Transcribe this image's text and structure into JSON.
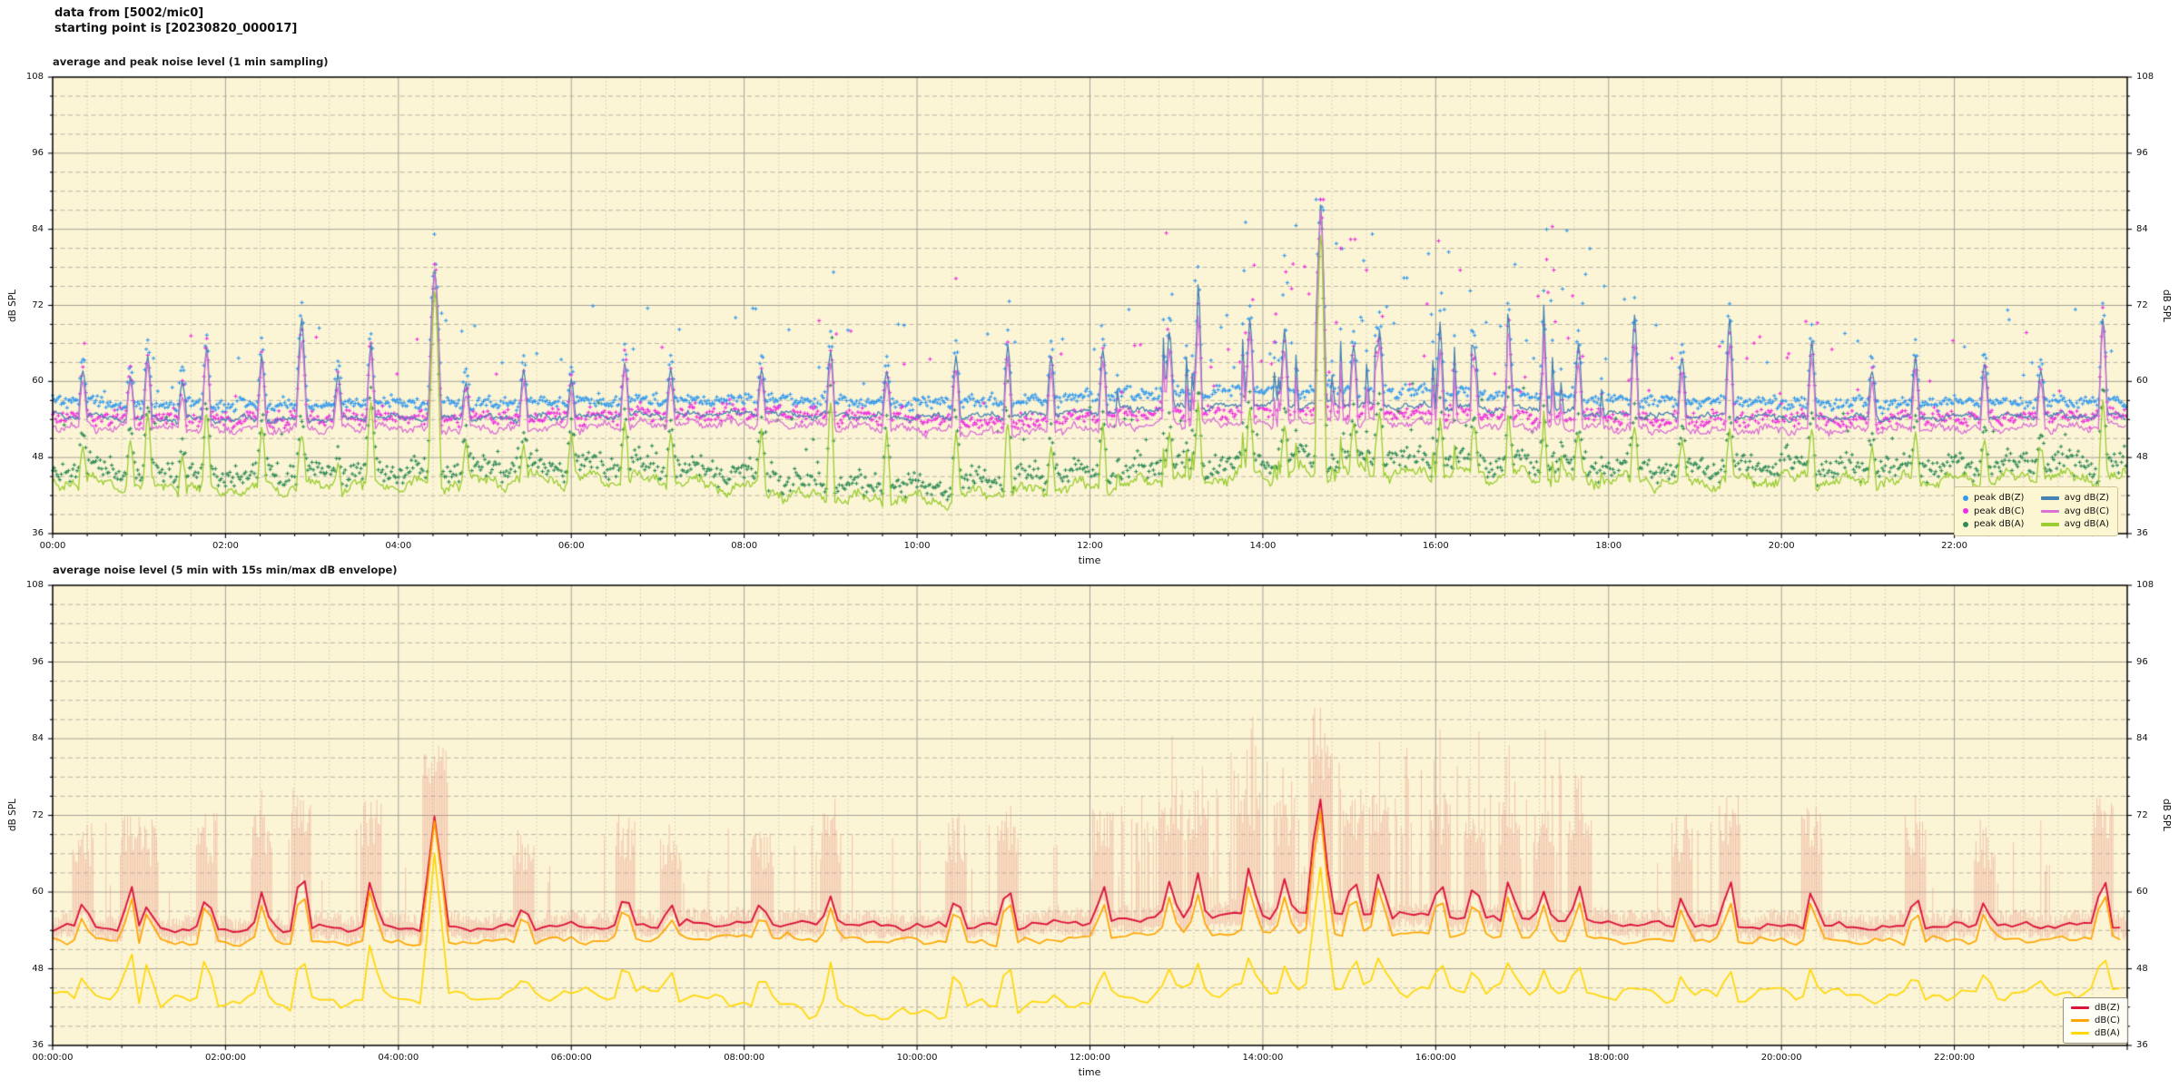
{
  "header": {
    "line1": "data from [5002/mic0]",
    "line2": "starting point is [20230820_000017]"
  },
  "figure": {
    "bg": "#ffffff",
    "plot_bg": "#fcf5d5",
    "grid_major": "#a5a298",
    "grid_minor_h": "#b8b3a6",
    "grid_minor_v": "#c9c4b2",
    "spine": "#000000",
    "tick_color": "#000000"
  },
  "chart_data": [
    {
      "type": "line+scatter",
      "title": "average and peak noise level (1 min sampling)",
      "xlabel": "time",
      "ylabel": "dB SPL",
      "ylabel_right": "dB SPL",
      "ylim": [
        36,
        108
      ],
      "y_major_step": 12,
      "y_minor_step": 3,
      "hours": 24,
      "x_major_step_h": 2,
      "x_minor_step_h": 0.4,
      "x_tick_labels": [
        "00:00",
        "02:00",
        "04:00",
        "06:00",
        "08:00",
        "10:00",
        "12:00",
        "14:00",
        "16:00",
        "18:00",
        "20:00",
        "22:00"
      ],
      "y_tick_labels": [
        "36",
        "48",
        "60",
        "72",
        "84",
        "96",
        "108"
      ],
      "sampling_minutes": 1,
      "seed": 7,
      "grid": true,
      "legend_position": "lower right",
      "busy": {
        "from": 12.2,
        "to": 18.0,
        "prob": 0.07,
        "mag": [
          2,
          11
        ]
      },
      "events": [
        [
          0.35,
          62,
          60.5,
          50,
          0.1
        ],
        [
          0.9,
          61,
          60,
          51,
          0.1
        ],
        [
          1.1,
          64,
          63,
          55,
          0.1
        ],
        [
          1.5,
          60,
          58,
          48,
          0.1
        ],
        [
          1.78,
          65.5,
          65,
          55.5,
          0.1
        ],
        [
          2.42,
          64,
          63,
          53,
          0.1
        ],
        [
          2.88,
          70,
          66.5,
          52,
          0.12
        ],
        [
          3.3,
          61,
          59,
          47,
          0.1
        ],
        [
          3.68,
          66,
          65,
          57,
          0.1
        ],
        [
          4.42,
          78,
          77,
          74.5,
          0.15
        ],
        [
          4.78,
          60,
          58,
          50,
          0.1
        ],
        [
          5.45,
          62,
          60,
          50,
          0.1
        ],
        [
          6.0,
          60,
          58.5,
          52,
          0.1
        ],
        [
          6.62,
          63,
          62,
          54,
          0.1
        ],
        [
          7.15,
          62,
          60,
          52,
          0.1
        ],
        [
          8.2,
          62,
          60.5,
          52,
          0.1
        ],
        [
          9.0,
          65,
          63,
          57,
          0.1
        ],
        [
          9.65,
          62,
          60,
          52,
          0.1
        ],
        [
          10.45,
          64,
          62,
          52,
          0.1
        ],
        [
          11.05,
          66,
          64,
          54,
          0.1
        ],
        [
          11.55,
          64,
          62,
          50,
          0.1
        ],
        [
          12.15,
          65,
          63,
          53,
          0.1
        ],
        [
          12.92,
          68,
          65,
          52,
          0.1
        ],
        [
          13.25,
          70,
          66,
          54,
          0.1
        ],
        [
          13.85,
          70,
          68,
          55.5,
          0.1
        ],
        [
          14.25,
          68,
          65,
          53,
          0.1
        ],
        [
          14.67,
          88,
          87,
          84,
          0.13
        ],
        [
          15.05,
          66,
          64,
          54,
          0.1
        ],
        [
          15.35,
          68,
          66,
          55,
          0.1
        ],
        [
          16.05,
          67,
          63.5,
          53,
          0.1
        ],
        [
          16.45,
          65,
          62,
          52,
          0.1
        ],
        [
          16.85,
          66,
          64,
          53,
          0.1
        ],
        [
          17.25,
          64,
          61,
          51,
          0.1
        ],
        [
          17.65,
          66,
          63,
          52,
          0.1
        ],
        [
          18.3,
          70,
          66,
          53,
          0.1
        ],
        [
          18.85,
          64,
          61,
          51,
          0.1
        ],
        [
          19.4,
          70,
          65.5,
          52,
          0.1
        ],
        [
          20.35,
          66,
          64,
          53,
          0.1
        ],
        [
          21.05,
          62,
          60,
          50,
          0.1
        ],
        [
          21.55,
          64,
          62,
          52,
          0.1
        ],
        [
          22.35,
          63,
          61,
          51,
          0.1
        ],
        [
          23.0,
          62,
          60,
          50,
          0.1
        ],
        [
          23.72,
          70,
          69,
          57,
          0.1
        ]
      ],
      "series": [
        {
          "name": "peak dB(Z)",
          "kind": "scatter",
          "color": "#3399ee",
          "ref": "avg dB(Z)",
          "offset": 2.3,
          "spread": 1.0,
          "outlier_prob": 0.035,
          "outlier_mag": [
            2,
            16
          ],
          "busy_outlier_prob": 0.13,
          "busy_outlier_mag": [
            3,
            26
          ],
          "clamp": 88.7,
          "seed": 21
        },
        {
          "name": "peak dB(C)",
          "kind": "scatter",
          "color": "#ee2fe0",
          "ref": "avg dB(C)",
          "offset": 1.7,
          "spread": 1.2,
          "outlier_prob": 0.03,
          "outlier_mag": [
            2,
            15
          ],
          "busy_outlier_prob": 0.11,
          "busy_outlier_mag": [
            3,
            24
          ],
          "clamp": 88.7,
          "seed": 22
        },
        {
          "name": "peak dB(A)",
          "kind": "scatter",
          "color": "#2e8b57",
          "ref": "avg dB(A)",
          "offset": 2.2,
          "spread": 1.8,
          "outlier_prob": 0.03,
          "outlier_mag": [
            2,
            10
          ],
          "busy_outlier_prob": 0.06,
          "busy_outlier_mag": [
            2,
            12
          ],
          "clamp": 88.7,
          "seed": 23
        },
        {
          "name": "avg dB(Z)",
          "kind": "line",
          "color": "#4682b4",
          "width": 1.3,
          "event_idx": 1,
          "jitter": 0.5,
          "wander": [
            0.5,
            34,
            13
          ],
          "busy_scale": 1.0,
          "seed": 11,
          "base": [
            54.6,
            54.2,
            54.0,
            54.1,
            54.3,
            54.2,
            54.4,
            54.7,
            55.0,
            54.6,
            54.4,
            54.6,
            55.2,
            55.8,
            56.2,
            56.4,
            56.0,
            55.6,
            54.9,
            54.5,
            54.4,
            54.3,
            54.4,
            54.6,
            54.6
          ]
        },
        {
          "name": "avg dB(C)",
          "kind": "line",
          "color": "#da70d6",
          "width": 1.3,
          "event_idx": 2,
          "jitter": 0.65,
          "wander": [
            0.7,
            30,
            12
          ],
          "busy_scale": 0.85,
          "seed": 12,
          "base": [
            53.0,
            52.6,
            52.4,
            52.5,
            52.7,
            52.6,
            52.8,
            53.2,
            53.4,
            53.0,
            52.4,
            51.9,
            52.6,
            53.4,
            53.6,
            53.8,
            53.4,
            53.0,
            52.6,
            52.3,
            52.4,
            52.4,
            52.5,
            52.8,
            52.8
          ]
        },
        {
          "name": "avg dB(A)",
          "kind": "line",
          "color": "#9acd32",
          "width": 1.3,
          "event_idx": 3,
          "jitter": 0.95,
          "wander": [
            1.3,
            38,
            14
          ],
          "busy_scale": 0.5,
          "seed": 13,
          "base": [
            44.2,
            43.6,
            43.0,
            43.2,
            43.8,
            44.2,
            44.6,
            44.4,
            43.2,
            41.6,
            41.2,
            42.6,
            43.4,
            44.6,
            45.2,
            45.6,
            45.4,
            45.0,
            44.6,
            44.2,
            44.6,
            44.2,
            44.4,
            45.0,
            44.6
          ]
        }
      ],
      "legend": {
        "columns": 2,
        "entries": [
          {
            "label": "peak dB(Z)",
            "marker": "dot",
            "color": "#3399ee"
          },
          {
            "label": "peak dB(C)",
            "marker": "dot",
            "color": "#ee2fe0"
          },
          {
            "label": "peak dB(A)",
            "marker": "dot",
            "color": "#2e8b57"
          },
          {
            "label": "avg dB(Z)",
            "marker": "line",
            "color": "#4682b4"
          },
          {
            "label": "avg dB(C)",
            "marker": "line",
            "color": "#da70d6"
          },
          {
            "label": "avg dB(A)",
            "marker": "line",
            "color": "#9acd32"
          }
        ]
      }
    },
    {
      "type": "line+envelope",
      "title": "average noise level (5 min with 15s min/max dB envelope)",
      "xlabel": "time",
      "ylabel": "dB SPL",
      "ylabel_right": "dB SPL",
      "ylim": [
        36,
        108
      ],
      "y_major_step": 12,
      "y_minor_step": 3,
      "hours": 24,
      "x_major_step_h": 2,
      "x_minor_step_h": 0.4,
      "x_tick_labels": [
        "00:00:00",
        "02:00:00",
        "04:00:00",
        "06:00:00",
        "08:00:00",
        "10:00:00",
        "12:00:00",
        "14:00:00",
        "16:00:00",
        "18:00:00",
        "20:00:00",
        "22:00:00"
      ],
      "y_tick_labels": [
        "36",
        "48",
        "60",
        "72",
        "84",
        "96",
        "108"
      ],
      "sampling_minutes": 5,
      "seed": 8,
      "grid": true,
      "legend_position": "lower right",
      "busy": {
        "from": 12.2,
        "to": 18.0,
        "prob": 0.06,
        "mag": [
          1,
          5.5
        ]
      },
      "envelope": {
        "color": "rgba(233,148,134,0.5)",
        "ref": "dB(Z)",
        "down": [
          0.8,
          2.2
        ],
        "up_base": [
          0.5,
          2.4
        ],
        "spike_prob": 0.055,
        "spike_mag": [
          5,
          17
        ],
        "busy_from": 12.2,
        "busy_to": 17.8,
        "busy_prob": 0.32,
        "busy_mag": [
          6,
          26
        ],
        "event_boost": [
          5,
          8
        ],
        "clamp": 88.8,
        "seed": 31
      },
      "events": [
        [
          0.35,
          58,
          56,
          47,
          0.2
        ],
        [
          0.9,
          61,
          59.5,
          51,
          0.2
        ],
        [
          1.1,
          58,
          57,
          49,
          0.2
        ],
        [
          1.78,
          59.5,
          58.5,
          50,
          0.2
        ],
        [
          2.42,
          60,
          58,
          48,
          0.2
        ],
        [
          2.88,
          64,
          61,
          50,
          0.2
        ],
        [
          3.68,
          62,
          60.5,
          52,
          0.2
        ],
        [
          4.42,
          72,
          71,
          66,
          0.26
        ],
        [
          5.45,
          58,
          56.5,
          47,
          0.2
        ],
        [
          6.62,
          59.5,
          58,
          49,
          0.2
        ],
        [
          7.15,
          58,
          56,
          48,
          0.2
        ],
        [
          8.2,
          58,
          56.5,
          47,
          0.2
        ],
        [
          9.0,
          59.5,
          57.5,
          49,
          0.2
        ],
        [
          10.45,
          59.5,
          57.5,
          48,
          0.2
        ],
        [
          11.05,
          61,
          59,
          49,
          0.2
        ],
        [
          12.15,
          61,
          58.5,
          48,
          0.2
        ],
        [
          12.92,
          62,
          59,
          48,
          0.2
        ],
        [
          13.25,
          63,
          60,
          49,
          0.2
        ],
        [
          13.85,
          64,
          61.5,
          50,
          0.2
        ],
        [
          14.25,
          62,
          59,
          48,
          0.2
        ],
        [
          14.67,
          72,
          70.5,
          63,
          0.24
        ],
        [
          15.05,
          62,
          60,
          50,
          0.2
        ],
        [
          15.35,
          63,
          61,
          50,
          0.2
        ],
        [
          16.05,
          62,
          59.5,
          49,
          0.2
        ],
        [
          16.45,
          61,
          58.5,
          48,
          0.2
        ],
        [
          16.85,
          62,
          60,
          49,
          0.2
        ],
        [
          17.25,
          60,
          58,
          48,
          0.2
        ],
        [
          17.65,
          61,
          59,
          48,
          0.2
        ],
        [
          18.85,
          59.5,
          57.5,
          47,
          0.2
        ],
        [
          19.4,
          62,
          58.5,
          48,
          0.2
        ],
        [
          20.35,
          60.5,
          58.5,
          48,
          0.2
        ],
        [
          21.55,
          59.5,
          57.5,
          47,
          0.2
        ],
        [
          22.35,
          58.5,
          56.5,
          47,
          0.2
        ],
        [
          23.72,
          62.5,
          60.5,
          50,
          0.2
        ]
      ],
      "series": [
        {
          "name": "dB(Z)",
          "kind": "line",
          "color": "#dc143c",
          "width": 1.9,
          "event_idx": 1,
          "jitter": 0.4,
          "wander": [
            0.6,
            42,
            16
          ],
          "busy_scale": 1.0,
          "seed": 14,
          "base": [
            54.8,
            54.4,
            54.2,
            54.3,
            54.5,
            54.4,
            54.6,
            54.9,
            55.2,
            54.8,
            54.6,
            54.8,
            55.4,
            56.0,
            56.4,
            56.6,
            56.2,
            55.8,
            55.1,
            54.7,
            54.6,
            54.5,
            54.6,
            54.8,
            54.8
          ]
        },
        {
          "name": "dB(C)",
          "kind": "line",
          "color": "#ffa500",
          "width": 1.7,
          "event_idx": 2,
          "jitter": 0.45,
          "wander": [
            0.6,
            40,
            15
          ],
          "busy_scale": 0.9,
          "seed": 15,
          "base": [
            52.6,
            52.2,
            52.0,
            52.1,
            52.3,
            52.2,
            52.4,
            52.8,
            53.0,
            52.6,
            52.4,
            52.2,
            52.8,
            53.4,
            53.6,
            53.8,
            53.4,
            53.0,
            52.5,
            52.2,
            52.3,
            52.3,
            52.4,
            52.7,
            52.7
          ]
        },
        {
          "name": "dB(A)",
          "kind": "line",
          "color": "#ffd705",
          "width": 1.7,
          "event_idx": 3,
          "jitter": 0.55,
          "wander": [
            1.2,
            46,
            18
          ],
          "busy_scale": 0.5,
          "seed": 16,
          "base": [
            43.8,
            43.2,
            42.6,
            42.8,
            43.4,
            43.8,
            44.2,
            44.0,
            42.8,
            41.2,
            40.8,
            42.2,
            43.0,
            44.2,
            44.8,
            45.2,
            45.0,
            44.6,
            44.2,
            43.8,
            44.2,
            43.8,
            44.0,
            44.6,
            44.2
          ]
        }
      ],
      "legend": {
        "columns": 1,
        "entries": [
          {
            "label": "dB(Z)",
            "marker": "line",
            "color": "#dc143c"
          },
          {
            "label": "dB(C)",
            "marker": "line",
            "color": "#ffa500"
          },
          {
            "label": "dB(A)",
            "marker": "line",
            "color": "#ffd705"
          }
        ]
      }
    }
  ]
}
